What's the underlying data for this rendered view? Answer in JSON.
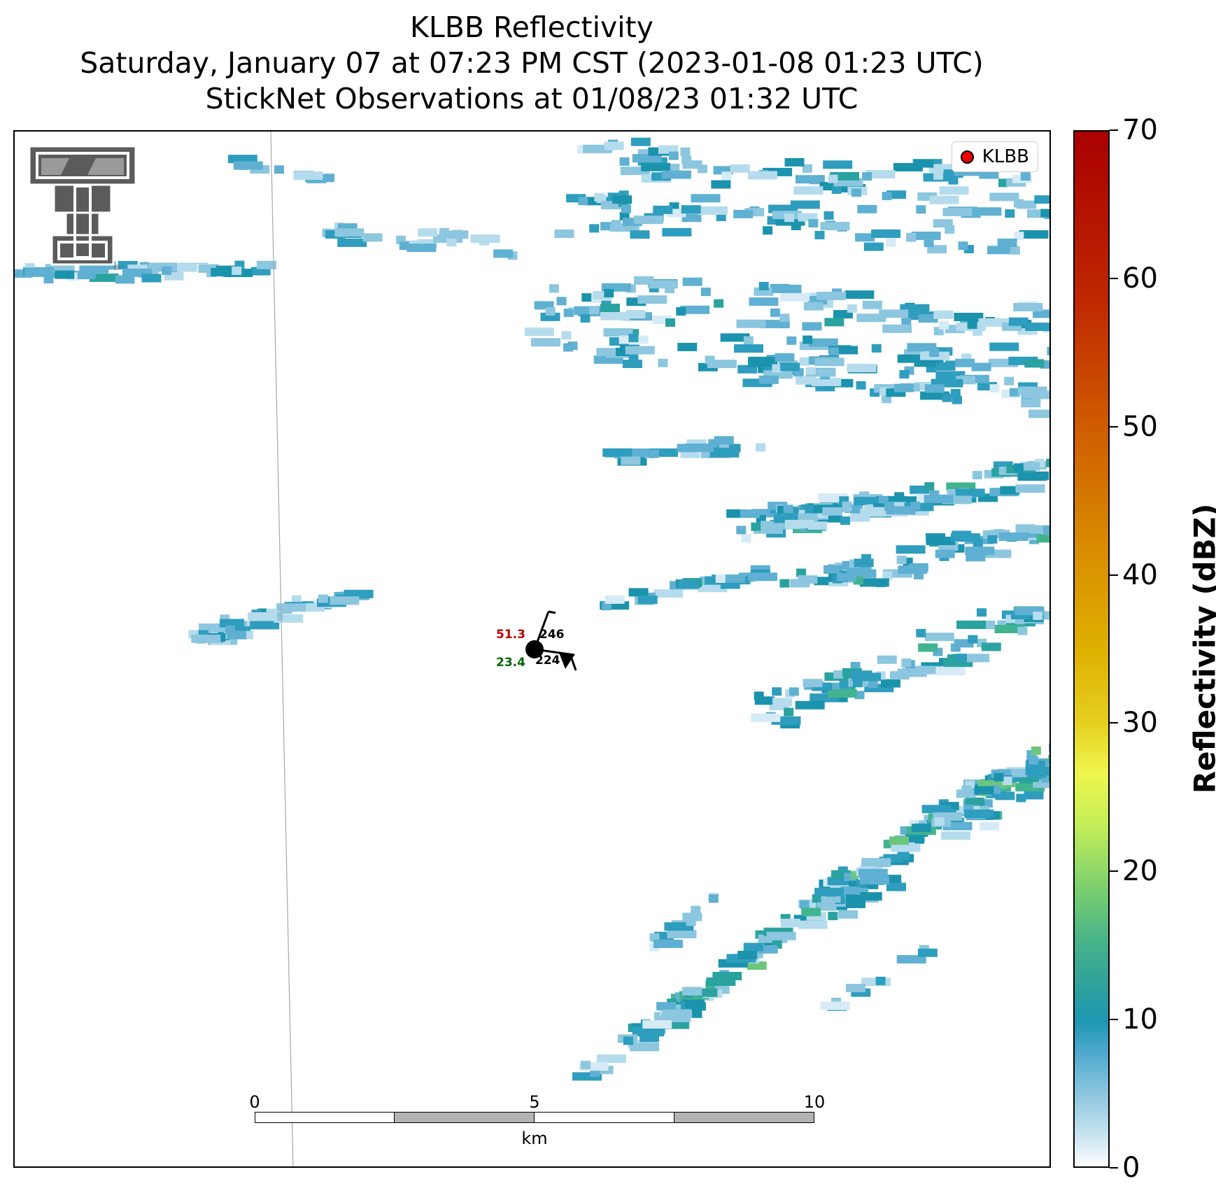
{
  "titles": {
    "line1": "KLBB Reflectivity",
    "line2": "Saturday, January 07 at 07:23 PM CST (2023-01-08 01:23 UTC)",
    "line3": "StickNet Observations at 01/08/23 01:32 UTC"
  },
  "legend": {
    "label": "KLBB",
    "marker_color": "#ee0000"
  },
  "logo": {
    "name": "texas-tech-double-t-logo",
    "trademark": "®"
  },
  "station": {
    "temperature": "51.3",
    "dewpoint": "23.4",
    "top_right_value": "246",
    "bottom_right_value": "224",
    "temperature_color": "#bb0000",
    "dewpoint_color": "#006600"
  },
  "scale_bar": {
    "ticks": [
      "0",
      "5",
      "10"
    ],
    "unit": "km"
  },
  "colorbar": {
    "label": "Reflectivity (dBZ)",
    "ticks": [
      "0",
      "10",
      "20",
      "30",
      "40",
      "50",
      "60",
      "70"
    ],
    "range": [
      0,
      70
    ]
  }
}
